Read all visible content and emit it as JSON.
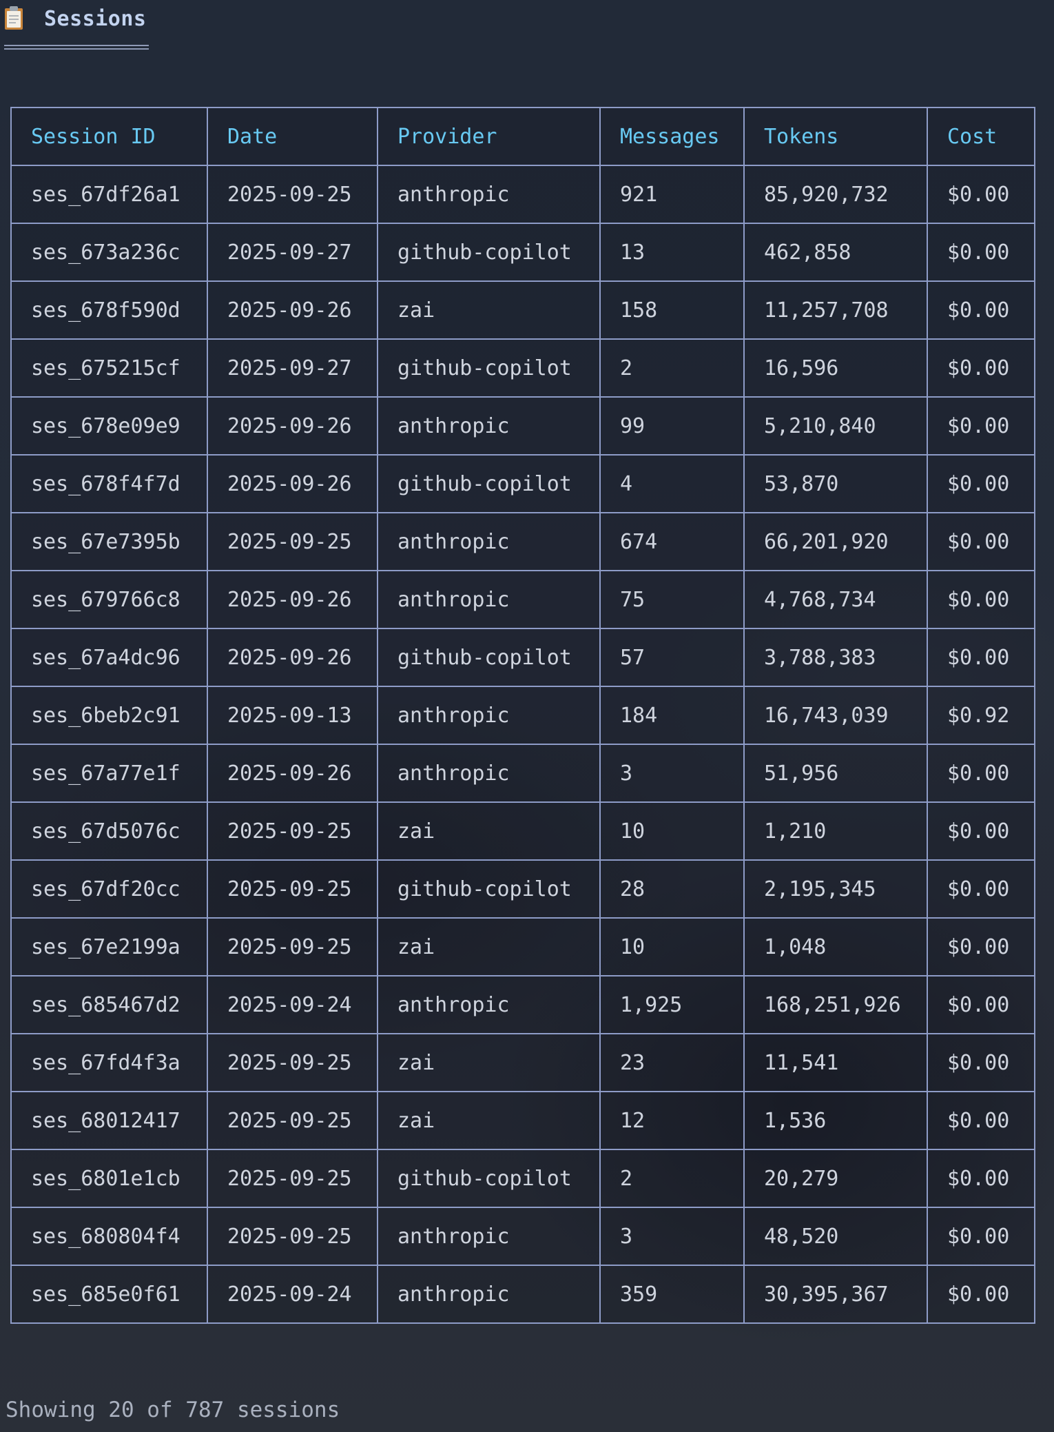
{
  "header": {
    "icon": "clipboard-icon",
    "title": "Sessions"
  },
  "table": {
    "columns": [
      "Session ID",
      "Date",
      "Provider",
      "Messages",
      "Tokens",
      "Cost"
    ],
    "rows": [
      [
        "ses_67df26a1",
        "2025-09-25",
        "anthropic",
        "921",
        "85,920,732",
        "$0.00"
      ],
      [
        "ses_673a236c",
        "2025-09-27",
        "github-copilot",
        "13",
        "462,858",
        "$0.00"
      ],
      [
        "ses_678f590d",
        "2025-09-26",
        "zai",
        "158",
        "11,257,708",
        "$0.00"
      ],
      [
        "ses_675215cf",
        "2025-09-27",
        "github-copilot",
        "2",
        "16,596",
        "$0.00"
      ],
      [
        "ses_678e09e9",
        "2025-09-26",
        "anthropic",
        "99",
        "5,210,840",
        "$0.00"
      ],
      [
        "ses_678f4f7d",
        "2025-09-26",
        "github-copilot",
        "4",
        "53,870",
        "$0.00"
      ],
      [
        "ses_67e7395b",
        "2025-09-25",
        "anthropic",
        "674",
        "66,201,920",
        "$0.00"
      ],
      [
        "ses_679766c8",
        "2025-09-26",
        "anthropic",
        "75",
        "4,768,734",
        "$0.00"
      ],
      [
        "ses_67a4dc96",
        "2025-09-26",
        "github-copilot",
        "57",
        "3,788,383",
        "$0.00"
      ],
      [
        "ses_6beb2c91",
        "2025-09-13",
        "anthropic",
        "184",
        "16,743,039",
        "$0.92"
      ],
      [
        "ses_67a77e1f",
        "2025-09-26",
        "anthropic",
        "3",
        "51,956",
        "$0.00"
      ],
      [
        "ses_67d5076c",
        "2025-09-25",
        "zai",
        "10",
        "1,210",
        "$0.00"
      ],
      [
        "ses_67df20cc",
        "2025-09-25",
        "github-copilot",
        "28",
        "2,195,345",
        "$0.00"
      ],
      [
        "ses_67e2199a",
        "2025-09-25",
        "zai",
        "10",
        "1,048",
        "$0.00"
      ],
      [
        "ses_685467d2",
        "2025-09-24",
        "anthropic",
        "1,925",
        "168,251,926",
        "$0.00"
      ],
      [
        "ses_67fd4f3a",
        "2025-09-25",
        "zai",
        "23",
        "11,541",
        "$0.00"
      ],
      [
        "ses_68012417",
        "2025-09-25",
        "zai",
        "12",
        "1,536",
        "$0.00"
      ],
      [
        "ses_6801e1cb",
        "2025-09-25",
        "github-copilot",
        "2",
        "20,279",
        "$0.00"
      ],
      [
        "ses_680804f4",
        "2025-09-25",
        "anthropic",
        "3",
        "48,520",
        "$0.00"
      ],
      [
        "ses_685e0f61",
        "2025-09-24",
        "anthropic",
        "359",
        "30,395,367",
        "$0.00"
      ]
    ]
  },
  "footer": {
    "text": "Showing 20 of 787 sessions"
  },
  "colors": {
    "header_text": "#68c9f2",
    "cell_text": "#cfd4de",
    "border": "#8e9cc8",
    "title": "#c3d3ef"
  }
}
